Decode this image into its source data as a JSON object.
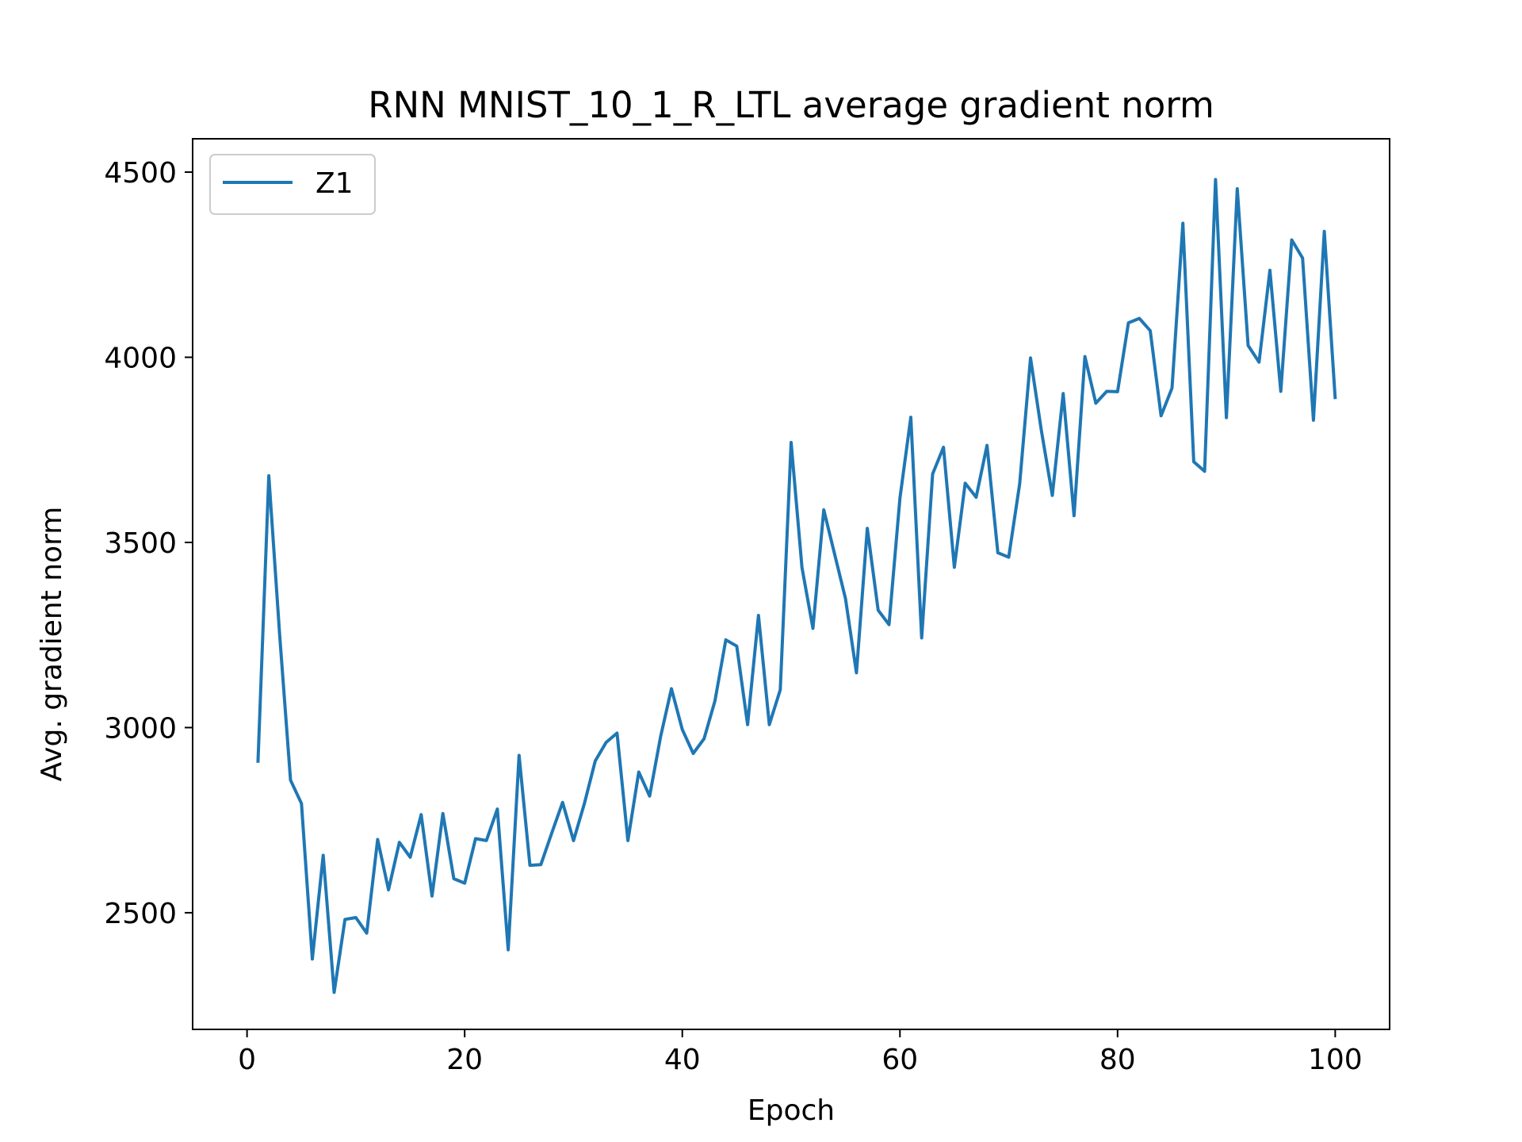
{
  "chart_data": {
    "type": "line",
    "title": "RNN MNIST_10_1_R_LTL average gradient norm",
    "xlabel": "Epoch",
    "ylabel": "Avg. gradient norm",
    "xlim": [
      -5,
      105
    ],
    "ylim": [
      2185,
      4590
    ],
    "xticks": [
      0,
      20,
      40,
      60,
      80,
      100
    ],
    "yticks": [
      2500,
      3000,
      3500,
      4000,
      4500
    ],
    "grid": false,
    "legend_position": "top-left",
    "series": [
      {
        "name": "Z1",
        "color": "#1f77b4",
        "x": [
          1,
          2,
          3,
          4,
          5,
          6,
          7,
          8,
          9,
          10,
          11,
          12,
          13,
          14,
          15,
          16,
          17,
          18,
          19,
          20,
          21,
          22,
          23,
          24,
          25,
          26,
          27,
          28,
          29,
          30,
          31,
          32,
          33,
          34,
          35,
          36,
          37,
          38,
          39,
          40,
          41,
          42,
          43,
          44,
          45,
          46,
          47,
          48,
          49,
          50,
          51,
          52,
          53,
          54,
          55,
          56,
          57,
          58,
          59,
          60,
          61,
          62,
          63,
          64,
          65,
          66,
          67,
          68,
          69,
          70,
          71,
          72,
          73,
          74,
          75,
          76,
          77,
          78,
          79,
          80,
          81,
          82,
          83,
          84,
          85,
          86,
          87,
          88,
          89,
          90,
          91,
          92,
          93,
          94,
          95,
          96,
          97,
          98,
          99,
          100
        ],
        "y": [
          2905,
          3680,
          3250,
          2858,
          2795,
          2375,
          2655,
          2285,
          2482,
          2487,
          2445,
          2698,
          2562,
          2690,
          2650,
          2765,
          2545,
          2768,
          2592,
          2580,
          2700,
          2695,
          2780,
          2400,
          2925,
          2628,
          2630,
          2715,
          2798,
          2695,
          2795,
          2910,
          2960,
          2985,
          2695,
          2880,
          2815,
          2975,
          3105,
          2995,
          2930,
          2970,
          3072,
          3237,
          3220,
          3008,
          3303,
          3008,
          3102,
          3770,
          3432,
          3268,
          3588,
          3468,
          3348,
          3148,
          3538,
          3317,
          3278,
          3620,
          3838,
          3242,
          3685,
          3757,
          3433,
          3660,
          3622,
          3762,
          3472,
          3460,
          3658,
          3998,
          3802,
          3627,
          3902,
          3572,
          4002,
          3876,
          3908,
          3907,
          4093,
          4105,
          4072,
          3842,
          3917,
          4362,
          3718,
          3692,
          4480,
          3837,
          4455,
          4032,
          3987,
          4235,
          3908,
          4317,
          4268,
          3830,
          4340,
          3887
        ]
      }
    ]
  }
}
